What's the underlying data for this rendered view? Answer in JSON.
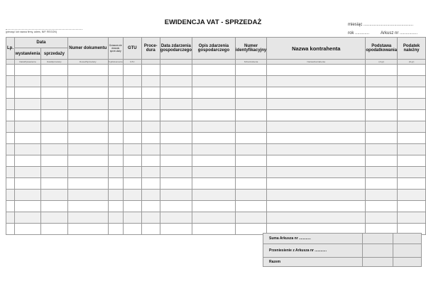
{
  "title": "EWIDENCJA VAT - SPRZEDAŻ",
  "month_label": "miesiąc ..........................................",
  "year_label": "rok ............",
  "sheet_label": "Arkusz nr ...............",
  "seal_caption": "(pieczęć lub nazwa firmy, adres, NIP, REGON)",
  "headers": {
    "lp": "Lp.",
    "data": "Data",
    "wystawienia": "wystawienia",
    "sprzedazy": "sprzedaży",
    "numer_dok": "Numer dokumentu",
    "oznaczenie": "Oznacze-nie dowodu sprze-daży",
    "gtu": "GTU",
    "procedura": "Proce-dura",
    "data_zdarzenia": "Data zdarzenia gospodarczego",
    "opis": "Opis zdarzenia gospodarczego",
    "nip": "Numer identyfikacyjny",
    "nazwa": "Nazwa kontrahenta",
    "podstawa": "Podstawa opodatkowania",
    "podatek": "Podatek należny"
  },
  "field_codes": {
    "wystawienia": "DataWystawienia",
    "sprzedazy": "DataSprzedazy",
    "numer_dok": "DowodSprzedazy",
    "oznaczenie": "TypDokumentu",
    "gtu": "GTU",
    "nip": "NrKontrahenta",
    "nazwa": "NazwaKontrahenta",
    "podstawa": "(zł gr)",
    "podatek": "(zł gr)"
  },
  "footer": {
    "suma": "Suma Arkusza nr ............",
    "przeniesienie": "Przeniesienie z Arkusza nr ............",
    "razem": "Razem"
  }
}
